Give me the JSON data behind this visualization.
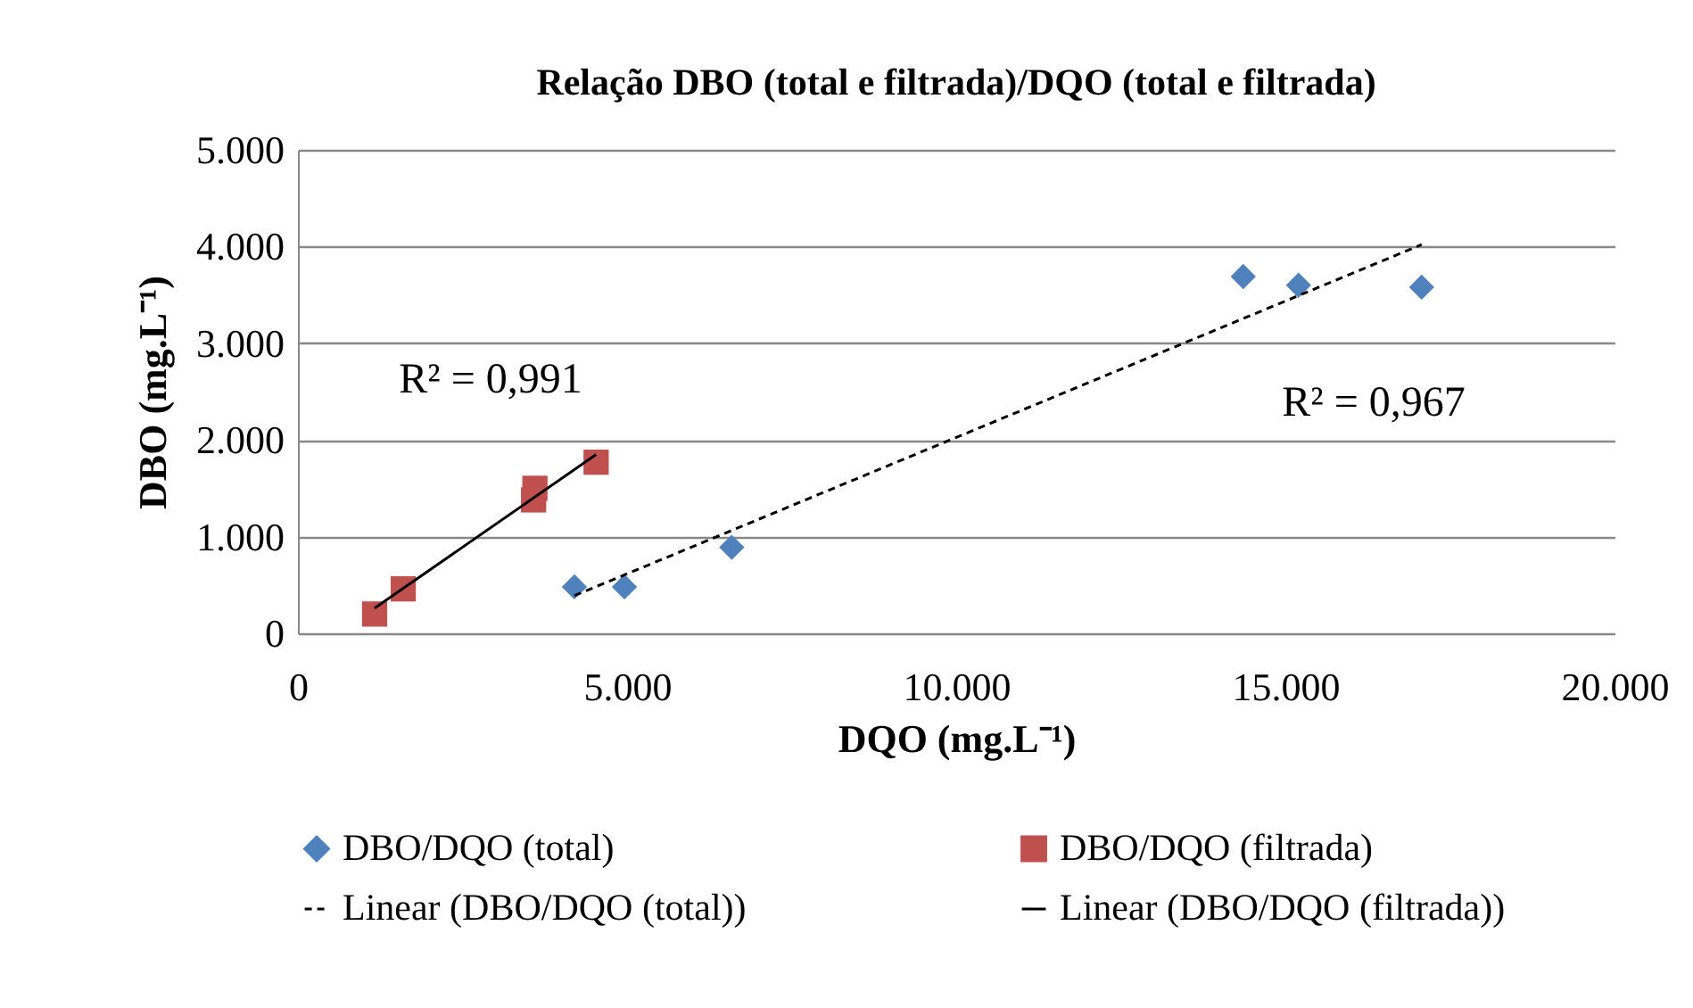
{
  "chart_data": {
    "type": "scatter",
    "title": "Relação DBO (total e filtrada)/DQO (total e filtrada)",
    "xlabel": "DQO (mg.L⁻¹)",
    "ylabel": "DBO (mg.L⁻¹)",
    "xlim": [
      0,
      20000
    ],
    "xticks": [
      0,
      {
        "value": 5000,
        "label": "5.000"
      },
      {
        "value": 10000,
        "label": "10.000"
      },
      {
        "value": 15000,
        "label": "15.000"
      },
      {
        "value": 20000,
        "label": "20.000"
      }
    ],
    "ylim": [
      0,
      5000
    ],
    "yticks": [
      0,
      {
        "value": 1000,
        "label": "1.000"
      },
      {
        "value": 2000,
        "label": "2.000"
      },
      {
        "value": 3000,
        "label": "3.000"
      },
      {
        "value": 4000,
        "label": "4.000"
      },
      {
        "value": 5000,
        "label": "5.000"
      }
    ],
    "grid": "y",
    "legend": "bottom",
    "series": [
      {
        "name": "DBO/DQO (total)",
        "marker": "diamond",
        "color": "#4f81bd",
        "x": [
          4200,
          4960,
          6590,
          14360,
          15200,
          17070
        ],
        "values": [
          480,
          480,
          890,
          3690,
          3600,
          3580
        ]
      },
      {
        "name": "DBO/DQO (filtrada)",
        "marker": "square",
        "color": "#c0504d",
        "x": [
          1165,
          1600,
          3580,
          3600,
          4530
        ],
        "values": [
          200,
          460,
          1380,
          1500,
          1770
        ]
      },
      {
        "name": "Linear (DBO/DQO (total))",
        "type": "line",
        "line_style": "dashed",
        "color": "#000000",
        "x": [
          4200,
          17070
        ],
        "values": [
          390,
          4020
        ]
      },
      {
        "name": "Linear (DBO/DQO (filtrada))",
        "type": "line",
        "line_style": "solid",
        "color": "#000000",
        "x": [
          1165,
          4530
        ],
        "values": [
          260,
          1850
        ]
      }
    ],
    "annotations": [
      "R² = 0,991",
      "R² = 0,967"
    ]
  }
}
